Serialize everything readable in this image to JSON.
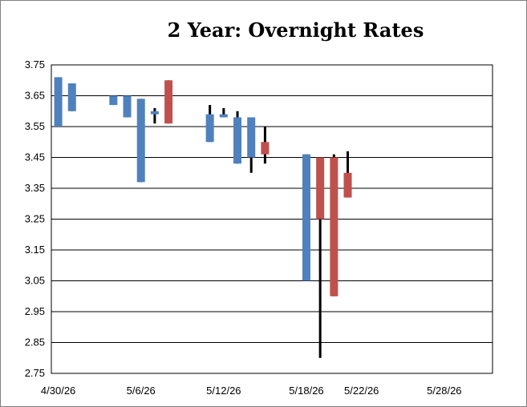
{
  "chart_data": {
    "type": "candlestick",
    "title": "2 Year:  Overnight Rates",
    "xlabel": "",
    "ylabel": "",
    "ylim": [
      2.75,
      3.75
    ],
    "yticks": [
      "3.75",
      "3.65",
      "3.55",
      "3.45",
      "3.35",
      "3.25",
      "3.15",
      "3.05",
      "2.95",
      "2.85",
      "2.75"
    ],
    "x_axis": {
      "start": "4/30/26",
      "end": "6/1/26",
      "tick_labels": [
        "4/30/26",
        "5/6/26",
        "5/12/26",
        "5/18/26",
        "5/22/26",
        "5/28/26"
      ]
    },
    "grid": "horizontal",
    "legend": "none",
    "colors": {
      "up": "#4f81bd",
      "down": "#c0504d",
      "wick": "#000000",
      "grid": "#000000"
    },
    "candles": [
      {
        "date": "4/30/26",
        "open": 3.55,
        "close": 3.71,
        "high": 3.71,
        "low": 3.55
      },
      {
        "date": "5/1/26",
        "open": 3.6,
        "close": 3.69,
        "high": 3.69,
        "low": 3.6
      },
      {
        "date": "5/4/26",
        "open": 3.62,
        "close": 3.65,
        "high": 3.65,
        "low": 3.62
      },
      {
        "date": "5/5/26",
        "open": 3.58,
        "close": 3.65,
        "high": 3.65,
        "low": 3.58
      },
      {
        "date": "5/6/26",
        "open": 3.37,
        "close": 3.64,
        "high": 3.64,
        "low": 3.37
      },
      {
        "date": "5/7/26",
        "open": 3.59,
        "close": 3.6,
        "high": 3.61,
        "low": 3.56
      },
      {
        "date": "5/8/26",
        "open": 3.7,
        "close": 3.56,
        "high": 3.7,
        "low": 3.56
      },
      {
        "date": "5/11/26",
        "open": 3.5,
        "close": 3.59,
        "high": 3.62,
        "low": 3.5
      },
      {
        "date": "5/12/26",
        "open": 3.58,
        "close": 3.59,
        "high": 3.61,
        "low": 3.58
      },
      {
        "date": "5/13/26",
        "open": 3.43,
        "close": 3.58,
        "high": 3.6,
        "low": 3.43
      },
      {
        "date": "5/14/26",
        "open": 3.45,
        "close": 3.58,
        "high": 3.58,
        "low": 3.4
      },
      {
        "date": "5/15/26",
        "open": 3.5,
        "close": 3.46,
        "high": 3.55,
        "low": 3.43
      },
      {
        "date": "5/18/26",
        "open": 3.05,
        "close": 3.46,
        "high": 3.46,
        "low": 3.05
      },
      {
        "date": "5/19/26",
        "open": 3.45,
        "close": 3.25,
        "high": 3.45,
        "low": 2.8
      },
      {
        "date": "5/20/26",
        "open": 3.45,
        "close": 3.0,
        "high": 3.46,
        "low": 3.0
      },
      {
        "date": "5/21/26",
        "open": 3.4,
        "close": 3.32,
        "high": 3.47,
        "low": 3.32
      }
    ]
  }
}
